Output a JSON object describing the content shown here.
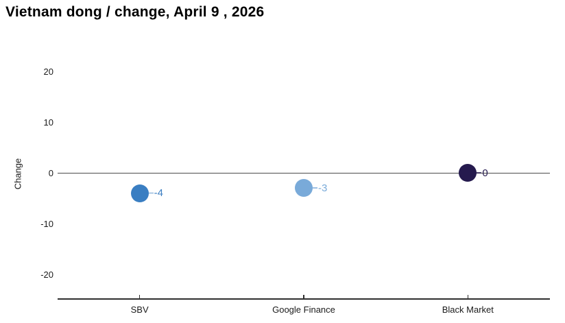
{
  "title": "Vietnam dong / change, April 9 , 2026",
  "chart_data": {
    "type": "scatter",
    "title": "Vietnam dong / change, April 9 , 2026",
    "categories": [
      "SBV",
      "Google Finance",
      "Black Market"
    ],
    "values": [
      -4,
      -3,
      0
    ],
    "point_labels": [
      "-4",
      "-3",
      "0"
    ],
    "point_colors": [
      "#3a7ec2",
      "#79aad9",
      "#251a4e"
    ],
    "xlabel": "",
    "ylabel": "Change",
    "yticks": [
      20,
      10,
      0,
      -10,
      -20
    ],
    "ylim": [
      -25,
      25
    ],
    "grid": "zero-line-only",
    "legend": "none"
  },
  "colors": {
    "background": "#ffffff",
    "axis_line": "#2e2e2e",
    "zero_line": "#4a4a4a",
    "tick_text": "#1a1a1a",
    "title_text": "#000000"
  }
}
